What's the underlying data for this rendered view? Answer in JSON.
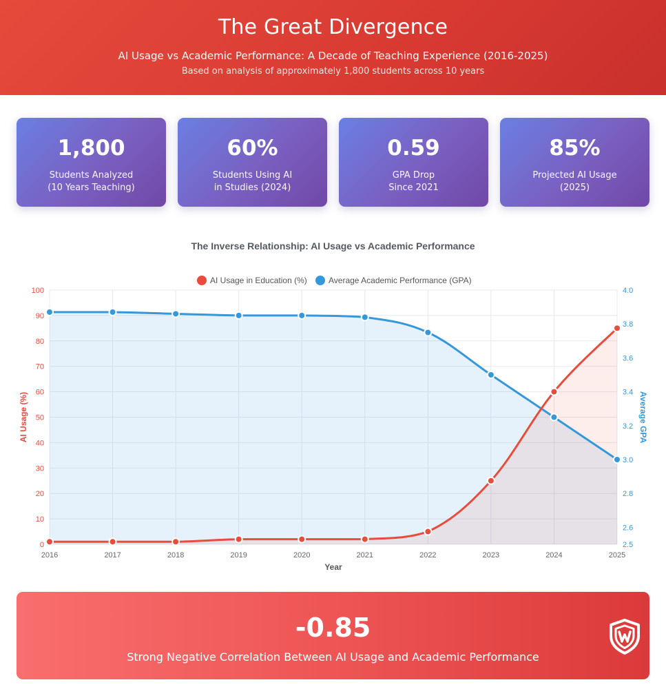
{
  "header": {
    "title": "The Great Divergence",
    "subtitle": "AI Usage vs Academic Performance: A Decade of Teaching Experience (2016-2025)",
    "source_note": "Based on analysis of approximately 1,800 students across 10 years"
  },
  "stats": [
    {
      "value": "1,800",
      "label_line1": "Students Analyzed",
      "label_line2": "(10 Years Teaching)"
    },
    {
      "value": "60%",
      "label_line1": "Students Using AI",
      "label_line2": "in Studies (2024)"
    },
    {
      "value": "0.59",
      "label_line1": "GPA Drop",
      "label_line2": "Since 2021"
    },
    {
      "value": "85%",
      "label_line1": "Projected AI Usage",
      "label_line2": "(2025)"
    }
  ],
  "chart_data": {
    "type": "line",
    "title": "The Inverse Relationship: AI Usage vs Academic Performance",
    "xlabel": "Year",
    "x": [
      "2016",
      "2017",
      "2018",
      "2019",
      "2020",
      "2021",
      "2022",
      "2023",
      "2024",
      "2025"
    ],
    "legend_position": "top-center",
    "grid": true,
    "series": [
      {
        "name": "AI Usage in Education (%)",
        "axis": "left",
        "color": "#e74c3c",
        "values": [
          1,
          1,
          1,
          2,
          2,
          2,
          5,
          25,
          60,
          85
        ]
      },
      {
        "name": "Average Academic Performance (GPA)",
        "axis": "right",
        "color": "#3498db",
        "values": [
          3.87,
          3.87,
          3.86,
          3.85,
          3.85,
          3.84,
          3.75,
          3.5,
          3.25,
          3.0
        ]
      }
    ],
    "y_left": {
      "label": "AI Usage (%)",
      "range": [
        0,
        100
      ],
      "ticks": [
        0,
        10,
        20,
        30,
        40,
        50,
        60,
        70,
        80,
        90,
        100
      ]
    },
    "y_right": {
      "label": "Average GPA",
      "range": [
        2.5,
        4.0
      ],
      "ticks": [
        "2.5",
        "2.6",
        "2.8",
        "3.0",
        "3.2",
        "3.4",
        "3.6",
        "3.8",
        "4.0"
      ]
    }
  },
  "correlation": {
    "value": "-0.85",
    "label": "Strong Negative Correlation Between AI Usage and Academic Performance"
  }
}
